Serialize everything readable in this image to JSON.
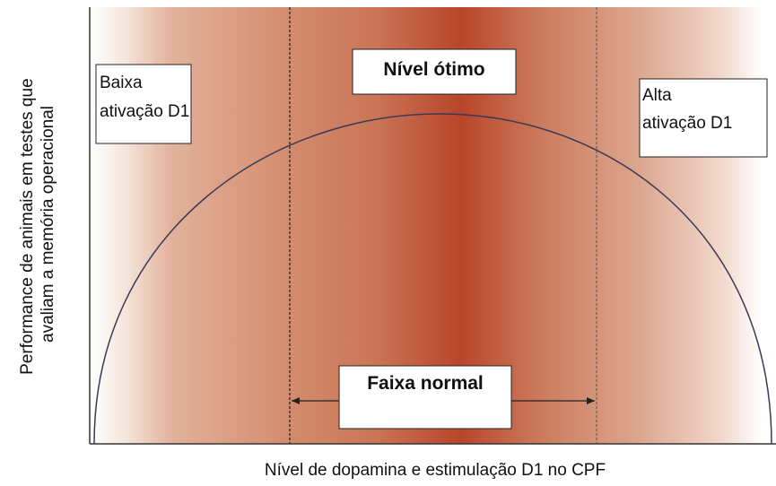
{
  "y_axis_label": [
    "Performance de animais em testes que",
    "avaliam a memória operacional"
  ],
  "x_axis_label": "Nível de dopamina e estimulação D1 no CPF",
  "labels": {
    "low": [
      "Baixa",
      "ativação D1"
    ],
    "optimal": "Nível ótimo",
    "high": [
      "Alta",
      "ativação D1"
    ],
    "normal_range": "Faixa normal"
  }
}
